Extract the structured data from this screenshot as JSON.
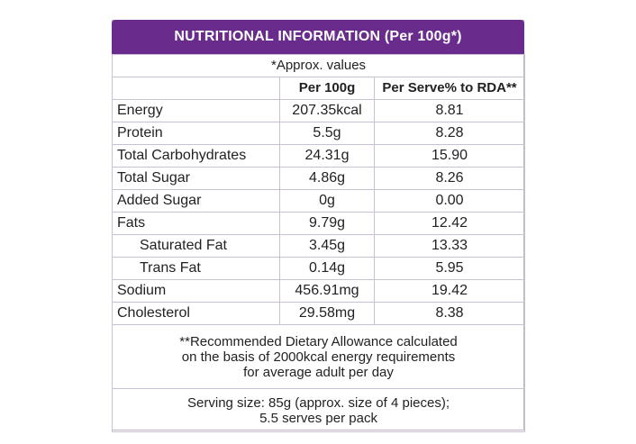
{
  "title": "NUTRITIONAL INFORMATION (Per 100g*)",
  "approx_note": "*Approx. values",
  "columns": [
    "",
    "Per 100g",
    "Per Serve% to RDA**"
  ],
  "rows": [
    {
      "name": "Energy",
      "per100g": "207.35kcal",
      "rda": "8.81"
    },
    {
      "name": "Protein",
      "per100g": "5.5g",
      "rda": "8.28"
    },
    {
      "name": "Total Carbohydrates",
      "per100g": "24.31g",
      "rda": "15.90"
    },
    {
      "name": "Total Sugar",
      "per100g": "4.86g",
      "rda": "8.26"
    },
    {
      "name": "Added Sugar",
      "per100g": "0g",
      "rda": "0.00"
    },
    {
      "name": "Fats",
      "per100g": "9.79g",
      "rda": "12.42"
    },
    {
      "name": "Saturated Fat",
      "per100g": "3.45g",
      "rda": "13.33"
    },
    {
      "name": "Trans Fat",
      "per100g": "0.14g",
      "rda": "5.95"
    },
    {
      "name": "Sodium",
      "per100g": "456.91mg",
      "rda": "19.42"
    },
    {
      "name": "Cholesterol",
      "per100g": "29.58mg",
      "rda": "8.38"
    }
  ],
  "rda_note": [
    "**Recommended Dietary Allowance calculated",
    "on the basis of 2000kcal energy requirements",
    "for average adult per day"
  ],
  "serving": [
    "Serving size: 85g (approx. size of 4 pieces);",
    "5.5 serves per pack"
  ],
  "colors": {
    "header_bg": "#6a2c8c",
    "border": "#c9c1d3"
  }
}
